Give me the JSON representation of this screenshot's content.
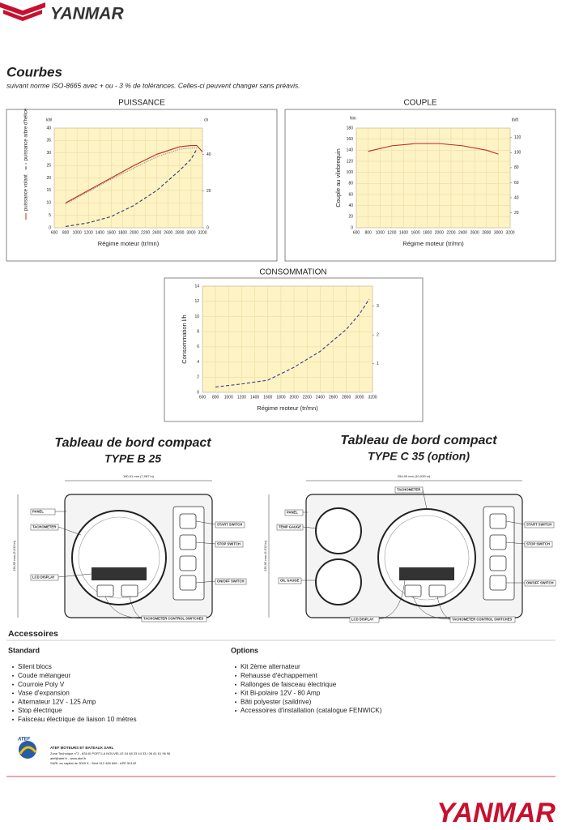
{
  "header": {
    "brand": "YANMAR",
    "title": "Courbes",
    "subtitle": "suivant norme ISO-8665 avec + ou - 3 % de tolérances. Celles-ci peuvent changer sans préavis."
  },
  "chart_data": [
    {
      "type": "line",
      "title": "PUISSANCE",
      "xlabel": "Régime moteur (tr/mn)",
      "ylabel": "kW",
      "y2label": "ch",
      "x": [
        800,
        1200,
        1600,
        2000,
        2400,
        2800,
        3000,
        3100,
        3200
      ],
      "series": [
        {
          "name": "puissance volant",
          "color": "#c0282d",
          "dash": "solid",
          "values": [
            10,
            15,
            20,
            25,
            29.5,
            32.5,
            33,
            33,
            30.5
          ]
        },
        {
          "color": "#888888",
          "dash": "dotted",
          "values": [
            9.5,
            14.5,
            19.5,
            24,
            28.5,
            31.5,
            32,
            32,
            null
          ]
        },
        {
          "name": "puissance arbre d'hélice",
          "color": "#2a3a78",
          "dash": "dashed",
          "values": [
            0.5,
            2,
            4.5,
            9,
            15,
            23,
            27.5,
            31.5,
            null
          ]
        }
      ],
      "xlim": [
        600,
        3200
      ],
      "xticks": [
        600,
        800,
        1000,
        1200,
        1400,
        1600,
        1800,
        2000,
        2200,
        2400,
        2600,
        2800,
        3000,
        3200
      ],
      "ylim": [
        0,
        40
      ],
      "yticks": [
        0,
        5,
        10,
        15,
        20,
        25,
        30,
        35,
        40
      ],
      "y2lim": [
        0,
        54.4
      ],
      "y2ticks": [
        0,
        20,
        40
      ],
      "grid": true,
      "background": "#fdf3c4"
    },
    {
      "type": "line",
      "title": "COUPLE",
      "xlabel": "Régime moteur (tr/mn)",
      "ylabel": "Couple au vilebrequin",
      "yunit": "Nm",
      "y2label": "lb/ft",
      "x": [
        800,
        1200,
        1600,
        2000,
        2400,
        2800,
        3000
      ],
      "series": [
        {
          "color": "#c0282d",
          "dash": "solid",
          "values": [
            138,
            148,
            152,
            152,
            148,
            140,
            133
          ]
        }
      ],
      "xlim": [
        600,
        3200
      ],
      "xticks": [
        600,
        800,
        1000,
        1200,
        1400,
        1600,
        1800,
        2000,
        2200,
        2400,
        2600,
        2800,
        3000,
        3200
      ],
      "ylim": [
        0,
        180
      ],
      "yticks": [
        0,
        20,
        40,
        60,
        80,
        100,
        120,
        140,
        160,
        180
      ],
      "y2lim": [
        0,
        132.8
      ],
      "y2ticks": [
        20,
        40,
        60,
        80,
        100,
        120
      ],
      "grid": true,
      "background": "#fdf3c4"
    },
    {
      "type": "line",
      "title": "CONSOMMATION",
      "xlabel": "Régime moteur (tr/mn)",
      "ylabel": "Consommation l/h",
      "x": [
        800,
        1200,
        1600,
        2000,
        2400,
        2800,
        3000,
        3150
      ],
      "series": [
        {
          "color": "#3a3a8c",
          "dash": "dashed",
          "values": [
            0.7,
            1.1,
            1.6,
            3.3,
            5.4,
            8.3,
            10.3,
            12.3
          ]
        }
      ],
      "xlim": [
        600,
        3200
      ],
      "xticks": [
        600,
        800,
        1000,
        1200,
        1400,
        1600,
        1800,
        2000,
        2200,
        2400,
        2600,
        2800,
        3000,
        3200
      ],
      "ylim": [
        0,
        14
      ],
      "yticks": [
        0,
        2,
        4,
        6,
        8,
        10,
        12,
        14
      ],
      "y2lim": [
        0,
        3.7
      ],
      "y2ticks": [
        1,
        2,
        3
      ],
      "grid": true,
      "background": "#fdf3c4"
    }
  ],
  "dashboards": [
    {
      "title": "Tableau de bord compact",
      "subtitle": "TYPE B 25",
      "width": "180,01 mm (7,087 in)",
      "height": "139,95 mm (5,510 in)",
      "labels": {
        "panel": "PANEL",
        "tachometer": "TACHOMETER",
        "lcd": "LCD DISPLAY",
        "start": "START SWITCH",
        "stop": "STOP SWITCH",
        "onoff": "ON/OFF SWITCH",
        "controls": "TACHOMETER CONTROL SWITCHES"
      }
    },
    {
      "title": "Tableau de bord compact",
      "subtitle": "TYPE C 35 (option)",
      "width": "254,99 mm (10,039 in)",
      "height": "139,95 mm (5,510 in)",
      "labels": {
        "tachometer": "TACHOMETER",
        "panel": "PANEL",
        "temp": "TEMP GAUGE",
        "oil": "OIL GAUGE",
        "start": "START SWITCH",
        "stop": "STOP SWITCH",
        "onoff": "ON/OFF SWITCH",
        "lcd": "LCD DISPLAY",
        "controls": "TACHOMETER CONTROL SWITCHES"
      }
    }
  ],
  "accessories": {
    "title": "Accessoires",
    "standard": {
      "title": "Standard",
      "items": [
        "Silent blocs",
        "Coude mélangeur",
        "Courroie  Poly V",
        "Vase d'expansion",
        "Alternateur 12V  - 125 Amp",
        "Stop électrique",
        "Faisceau électrique de liaison 10 mètres"
      ]
    },
    "options": {
      "title": "Options",
      "items": [
        "Kit 2ème alternateur",
        "Rehausse d'échappement",
        "Rallonges de faisceau électrique",
        "Kit  Bi-polaire 12V - 80 Amp",
        "Bâti polyester (saildrive)",
        "Accessoires  d'installation (catalogue FENWICK)"
      ]
    }
  },
  "footer": {
    "logo": "ATEF",
    "company": "ATEF MOTEURS ET BATEAUX SARL",
    "lines": [
      "Zone Technique n°2 - 83140 PORT LA NOUVELLE  04 68 33 44 33 / 06 61 61 96 96",
      "atef@atef.fr - www.atef.fr",
      "SARL au capital de 3000 € - Siret 412 489 656 - APE 5010Z"
    ],
    "brand": "YANMAR"
  }
}
